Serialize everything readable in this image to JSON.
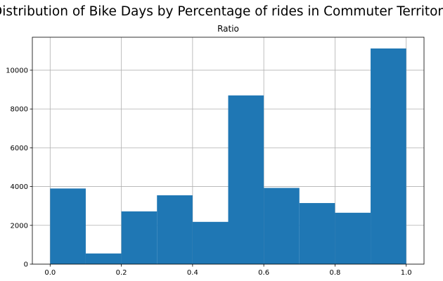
{
  "figure_title": "Distribution of Bike Days by Percentage of rides in Commuter Territory",
  "chart_data": {
    "type": "bar",
    "subtype": "histogram",
    "title": "Ratio",
    "bin_edges": [
      0.0,
      0.1,
      0.2,
      0.3,
      0.4,
      0.5,
      0.6,
      0.7,
      0.8,
      0.9,
      1.0
    ],
    "values": [
      3900,
      550,
      2720,
      3550,
      2180,
      8700,
      3930,
      3150,
      2650,
      11120
    ],
    "xlim": [
      -0.05,
      1.05
    ],
    "ylim": [
      0,
      11700
    ],
    "x_ticks": [
      0.0,
      0.2,
      0.4,
      0.6,
      0.8,
      1.0
    ],
    "x_tick_labels": [
      "0.0",
      "0.2",
      "0.4",
      "0.6",
      "0.8",
      "1.0"
    ],
    "y_ticks": [
      0,
      2000,
      4000,
      6000,
      8000,
      10000
    ],
    "y_tick_labels": [
      "0",
      "2000",
      "4000",
      "6000",
      "8000",
      "10000"
    ],
    "grid": true,
    "bar_color": "#1f77b4",
    "grid_color": "#b0b0b0"
  }
}
